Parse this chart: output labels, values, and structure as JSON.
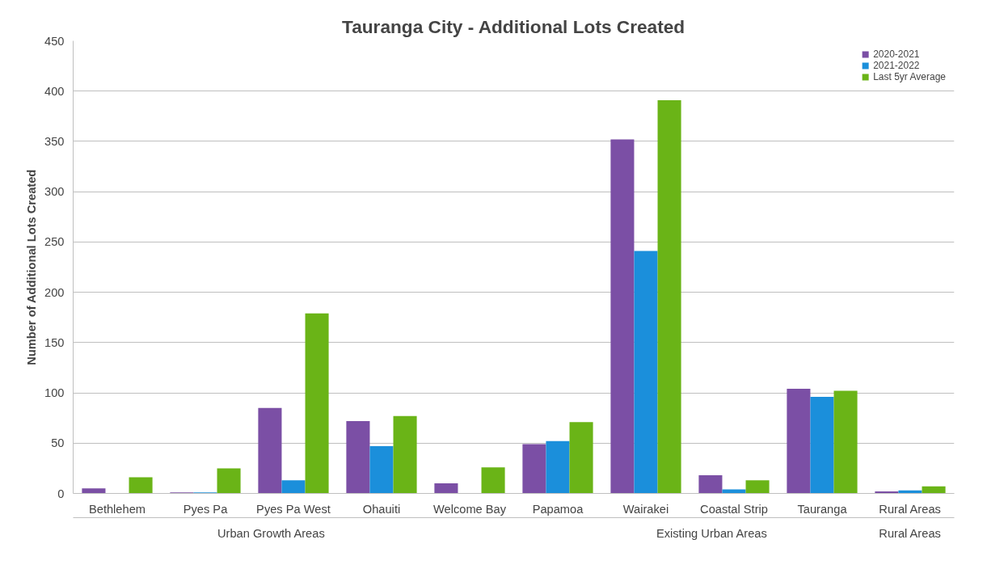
{
  "chart_data": {
    "type": "bar",
    "title": "Tauranga City - Additional Lots Created",
    "ylabel": "Number of Additional Lots Created",
    "categories": [
      "Bethlehem",
      "Pyes Pa",
      "Pyes Pa West",
      "Ohauiti",
      "Welcome Bay",
      "Papamoa",
      "Wairakei",
      "Coastal Strip",
      "Tauranga",
      "Rural Areas"
    ],
    "series": [
      {
        "name": "2020-2021",
        "color": "#7b4fa5",
        "values": [
          5,
          1,
          85,
          72,
          10,
          49,
          352,
          18,
          104,
          2
        ]
      },
      {
        "name": "2021-2022",
        "color": "#1b8fdb",
        "values": [
          0,
          1,
          13,
          47,
          0,
          52,
          241,
          4,
          96,
          3
        ]
      },
      {
        "name": "Last 5yr Average",
        "color": "#6ab417",
        "values": [
          16,
          25,
          179,
          77,
          26,
          71,
          391,
          13,
          102,
          7
        ]
      }
    ],
    "annotations": [
      "Urban Growth Areas",
      "Existing Urban Areas",
      "Rural Areas"
    ],
    "ylim": [
      0,
      450
    ],
    "yticks": [
      0,
      50,
      100,
      150,
      200,
      250,
      300,
      350,
      400,
      450
    ],
    "grid": "y",
    "legend": "top right"
  }
}
